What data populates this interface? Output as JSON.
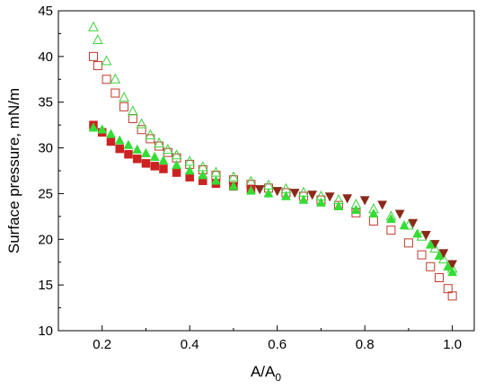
{
  "chart_data": {
    "type": "scatter",
    "xlabel": "A/A",
    "xlabel_sub": "0",
    "ylabel": "Surface pressure, mN/m",
    "xlim": [
      0.1,
      1.05
    ],
    "ylim": [
      10,
      45
    ],
    "xticks": [
      "0.2",
      "0.4",
      "0.6",
      "0.8",
      "1.0"
    ],
    "yticks": [
      "10",
      "15",
      "20",
      "25",
      "30",
      "35",
      "40",
      "45"
    ],
    "grid": false,
    "legend": "none",
    "series": [
      {
        "marker": "square-open",
        "color": "#c0392b",
        "x": [
          0.18,
          0.19,
          0.21,
          0.23,
          0.25,
          0.27,
          0.29,
          0.31,
          0.33,
          0.35,
          0.37,
          0.4,
          0.43,
          0.46,
          0.5,
          0.54,
          0.58,
          0.62,
          0.66,
          0.7,
          0.74,
          0.78,
          0.82,
          0.86,
          0.9,
          0.93,
          0.95,
          0.97,
          0.99,
          1.0
        ],
        "y": [
          40.0,
          39.0,
          37.5,
          36.0,
          34.5,
          33.2,
          32.0,
          31.0,
          30.2,
          29.5,
          28.9,
          28.2,
          27.6,
          27.0,
          26.5,
          26.0,
          25.6,
          25.1,
          24.7,
          24.3,
          23.7,
          22.9,
          22.0,
          21.0,
          19.6,
          18.3,
          17.0,
          15.8,
          14.6,
          13.8
        ]
      },
      {
        "marker": "triangle-open",
        "color": "#3ad13a",
        "x": [
          0.18,
          0.19,
          0.21,
          0.23,
          0.25,
          0.27,
          0.29,
          0.31,
          0.33,
          0.35,
          0.37,
          0.4,
          0.43,
          0.46,
          0.5,
          0.54,
          0.58,
          0.62,
          0.66,
          0.7,
          0.74,
          0.78,
          0.82,
          0.86,
          0.9,
          0.93,
          0.96,
          0.98,
          1.0
        ],
        "y": [
          43.2,
          41.8,
          39.5,
          37.5,
          35.5,
          34.0,
          32.6,
          31.4,
          30.5,
          29.8,
          29.2,
          28.5,
          27.9,
          27.3,
          26.8,
          26.3,
          25.9,
          25.5,
          25.1,
          24.7,
          24.3,
          23.8,
          23.3,
          22.5,
          21.5,
          20.3,
          19.0,
          17.8,
          16.8
        ]
      },
      {
        "marker": "square-filled",
        "color": "#cc2222",
        "x": [
          0.18,
          0.2,
          0.22,
          0.24,
          0.26,
          0.28,
          0.3,
          0.32,
          0.34,
          0.37,
          0.4,
          0.43,
          0.46,
          0.5,
          0.54
        ],
        "y": [
          32.5,
          31.7,
          30.7,
          29.9,
          29.3,
          28.8,
          28.3,
          28.0,
          27.7,
          27.3,
          26.8,
          26.4,
          26.1,
          25.8,
          25.5
        ]
      },
      {
        "marker": "triangle-down-filled",
        "color": "#8b2a1a",
        "x": [
          0.56,
          0.6,
          0.64,
          0.68,
          0.72,
          0.76,
          0.8,
          0.84,
          0.88,
          0.91,
          0.94,
          0.96,
          0.98,
          1.0
        ],
        "y": [
          25.5,
          25.3,
          25.1,
          24.9,
          24.7,
          24.5,
          24.3,
          23.8,
          22.8,
          21.8,
          20.5,
          19.5,
          18.5,
          17.3
        ]
      },
      {
        "marker": "triangle-filled",
        "color": "#33dd33",
        "x": [
          0.18,
          0.2,
          0.22,
          0.24,
          0.26,
          0.28,
          0.3,
          0.32,
          0.34,
          0.37,
          0.4,
          0.43,
          0.46,
          0.5,
          0.54,
          0.58,
          0.62,
          0.66,
          0.7,
          0.74,
          0.78,
          0.82,
          0.86,
          0.89,
          0.92,
          0.95,
          0.97,
          0.99,
          1.0
        ],
        "y": [
          32.2,
          32.0,
          31.5,
          30.8,
          30.3,
          29.8,
          29.4,
          29.0,
          28.6,
          28.1,
          27.5,
          27.0,
          26.4,
          25.8,
          25.3,
          25.0,
          24.7,
          24.3,
          24.0,
          23.6,
          23.2,
          22.8,
          22.2,
          21.5,
          20.6,
          19.4,
          18.2,
          17.0,
          16.4
        ]
      }
    ]
  }
}
